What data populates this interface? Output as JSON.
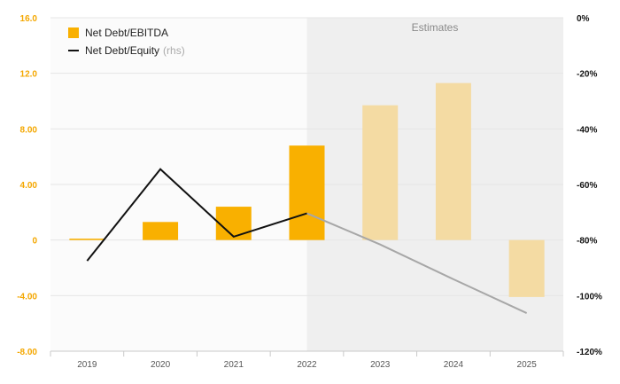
{
  "chart_data": {
    "type": "bar",
    "categories": [
      "2019",
      "2020",
      "2021",
      "2022",
      "2023",
      "2024",
      "2025"
    ],
    "estimates_label": "Estimates",
    "estimates_start": "2023",
    "series": [
      {
        "name": "Net Debt/EBITDA",
        "type": "bar",
        "axis": "left",
        "values": [
          0.1,
          1.3,
          2.4,
          6.8,
          9.7,
          11.3,
          -4.1
        ]
      },
      {
        "name": "Net Debt/Equity",
        "name_suffix": "(rhs)",
        "type": "line",
        "axis": "right",
        "values": [
          -87.5,
          -54.5,
          -78.8,
          -70.4,
          -81.6,
          -94.1,
          -106.3
        ]
      }
    ],
    "y_left": {
      "ylim": [
        -8,
        16
      ],
      "ticks": [
        16,
        12,
        8,
        4,
        0,
        -4,
        -8
      ],
      "tick_labels": [
        "16.0",
        "12.0",
        "8.00",
        "4.00",
        "0",
        "-4.00",
        "-8.00"
      ]
    },
    "y_right": {
      "ylim": [
        -120,
        0
      ],
      "ticks": [
        0,
        -20,
        -40,
        -60,
        -80,
        -100,
        -120
      ],
      "tick_labels": [
        "0%",
        "-20%",
        "-40%",
        "-60%",
        "-80%",
        "-100%",
        "-120%"
      ]
    },
    "colors": {
      "bar_actual": "#f9b000",
      "bar_estimate": "#f4dba3",
      "line_actual": "#111111",
      "line_estimate": "#a7a7a7",
      "left_axis_text": "#f4a700",
      "estimate_shade": "#efefef",
      "grid": "#e6e6e6"
    },
    "grid": true,
    "legend_position": "top-left"
  }
}
